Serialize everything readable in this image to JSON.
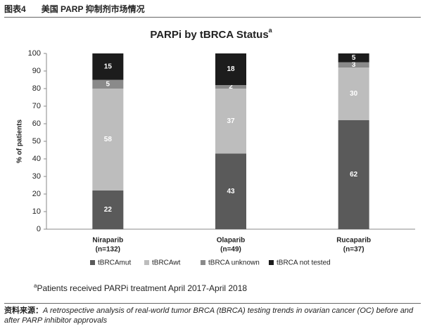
{
  "header": {
    "label": "图表4",
    "title": "美国 PARP 抑制剂市场情况"
  },
  "chart_data": {
    "type": "stacked_bar",
    "title": "PARPi by tBRCA Status",
    "title_marker": "a",
    "y_label": "% of patients",
    "categories": [
      "Niraparib",
      "Olaparib",
      "Rucaparib"
    ],
    "category_notes": [
      "(n=132)",
      "(n=49)",
      "(n=37)"
    ],
    "series": [
      {
        "name": "tBRCAmut",
        "color": "#5a5a5a",
        "values": [
          22,
          43,
          62
        ]
      },
      {
        "name": "tBRCAwt",
        "color": "#bdbdbd",
        "values": [
          58,
          37,
          30
        ]
      },
      {
        "name": "tBRCA unknown",
        "color": "#8a8a8a",
        "values": [
          5,
          2,
          3
        ]
      },
      {
        "name": "tBRCA not tested",
        "color": "#1c1c1c",
        "values": [
          15,
          18,
          5
        ]
      }
    ],
    "ylim": [
      0,
      100
    ],
    "yticks": [
      0,
      10,
      20,
      30,
      40,
      50,
      60,
      70,
      80,
      90,
      100
    ],
    "grid": false
  },
  "footnote": {
    "marker": "a",
    "text": "Patients received PARPi treatment April 2017-April 2018"
  },
  "source": {
    "label": "资料来源：",
    "text": "A retrospective analysis of real-world tumor BRCA (tBRCA) testing trends in ovarian cancer (OC) before and after PARP inhibitor approvals"
  }
}
